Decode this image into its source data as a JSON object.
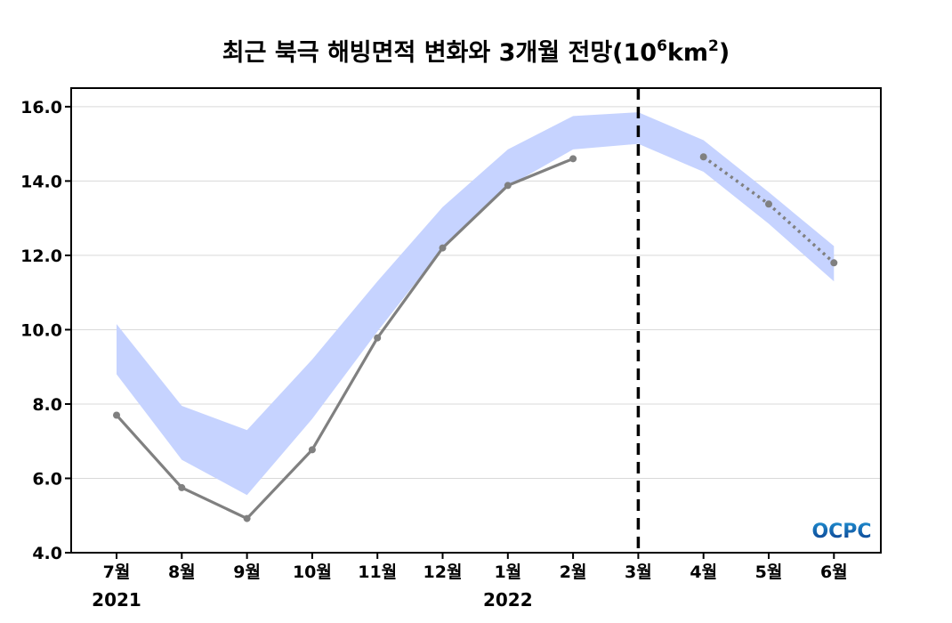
{
  "chart_data": {
    "type": "line",
    "title": "최근 북극 해빙면적 변화와 3개월 전망(10",
    "title_sup1": "6",
    "title_mid": "km",
    "title_sup2": "2",
    "title_end": ")",
    "categories": [
      "7월",
      "8월",
      "9월",
      "10월",
      "11월",
      "12월",
      "1월",
      "2월",
      "3월",
      "4월",
      "5월",
      "6월"
    ],
    "year_labels": [
      {
        "category": "7월",
        "text": "2021"
      },
      {
        "category": "1월",
        "text": "2022"
      }
    ],
    "ylim": [
      4.0,
      16.5
    ],
    "yticks": [
      4.0,
      6.0,
      8.0,
      10.0,
      12.0,
      14.0,
      16.0
    ],
    "ytick_labels": [
      "4.0",
      "6.0",
      "8.0",
      "10.0",
      "12.0",
      "14.0",
      "16.0"
    ],
    "grid": true,
    "forecast_divider_category": "3월",
    "band": {
      "color": "#c6d3ff",
      "upper": [
        10.15,
        7.95,
        7.3,
        9.2,
        11.3,
        13.3,
        14.85,
        15.75,
        15.85,
        15.1,
        13.7,
        12.25
      ],
      "lower": [
        8.8,
        6.5,
        5.55,
        7.6,
        9.95,
        12.2,
        13.85,
        14.85,
        15.0,
        14.25,
        12.85,
        11.3
      ]
    },
    "series": [
      {
        "style": "solid",
        "color": "#808080",
        "points": [
          {
            "category": "7월",
            "y": 7.7
          },
          {
            "category": "8월",
            "y": 5.75
          },
          {
            "category": "9월",
            "y": 4.92
          },
          {
            "category": "10월",
            "y": 6.77
          },
          {
            "category": "11월",
            "y": 9.78
          },
          {
            "category": "12월",
            "y": 12.2
          },
          {
            "category": "1월",
            "y": 13.88
          },
          {
            "category": "2월",
            "y": 14.6
          }
        ]
      },
      {
        "style": "dotted",
        "color": "#808080",
        "points": [
          {
            "category": "4월",
            "y": 14.65
          },
          {
            "category": "5월",
            "y": 13.38
          },
          {
            "category": "6월",
            "y": 11.8
          }
        ]
      }
    ]
  },
  "logo": {
    "text": "OCPC",
    "color_top": "#1f8fd0",
    "color_bottom": "#0b3a8c"
  }
}
